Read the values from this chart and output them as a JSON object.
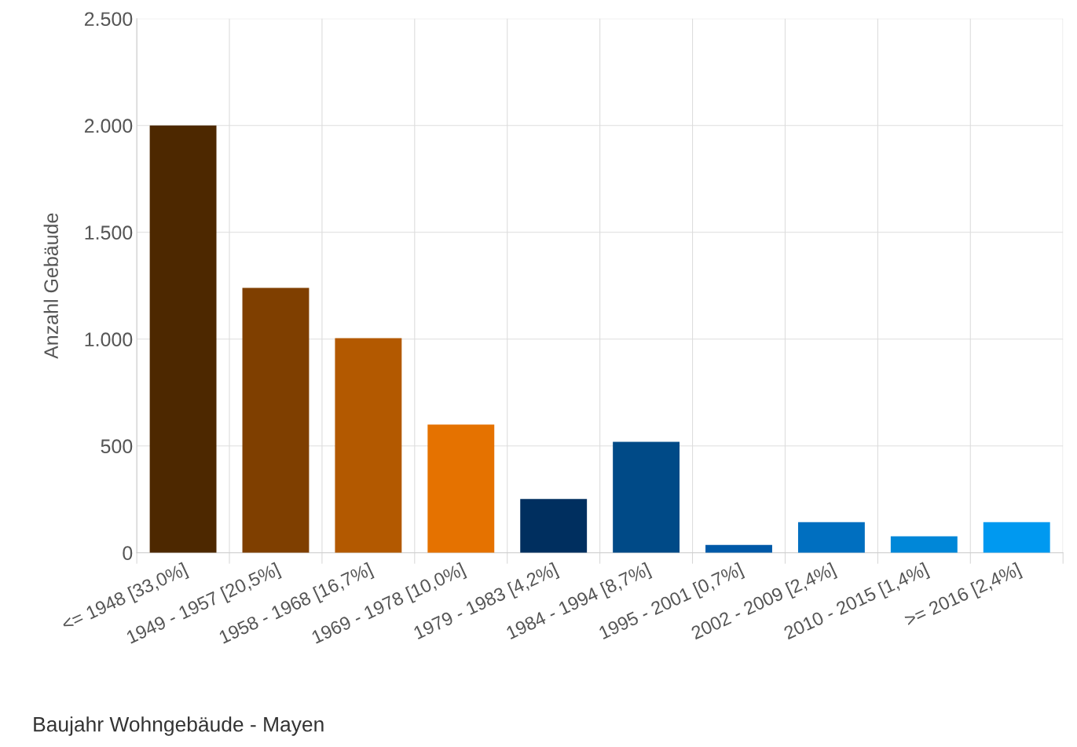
{
  "chart_data": {
    "type": "bar",
    "title": "Baujahr Wohngebäude - Mayen",
    "ylabel": "Anzahl Gebäude",
    "categories": [
      "<= 1948 [33,0%]",
      "1949 - 1957 [20,5%]",
      "1958 - 1968 [16,7%]",
      "1969 - 1978 [10,0%]",
      "1979 - 1983 [4,2%]",
      "1984 - 1994 [8,7%]",
      "1995 - 2001 [0,7%]",
      "2002 - 2009 [2,4%]",
      "2010 - 2015 [1,4%]",
      ">= 2016 [2,4%]"
    ],
    "values": [
      2000,
      1240,
      1005,
      600,
      252,
      519,
      37,
      143,
      77,
      143
    ],
    "colors": [
      "#4d2800",
      "#7f3f00",
      "#b35900",
      "#e57200",
      "#002f5f",
      "#004a87",
      "#0059a8",
      "#006fc0",
      "#0087d8",
      "#0099f0"
    ],
    "ylim": [
      0,
      2500
    ],
    "yticks": [
      0,
      500,
      {
        "value": 1000,
        "label": "1.000"
      },
      {
        "value": 1500,
        "label": "1.500"
      },
      {
        "value": 2000,
        "label": "2.000"
      },
      {
        "value": 2500,
        "label": "2.500"
      }
    ],
    "grid": true,
    "legend": false
  }
}
